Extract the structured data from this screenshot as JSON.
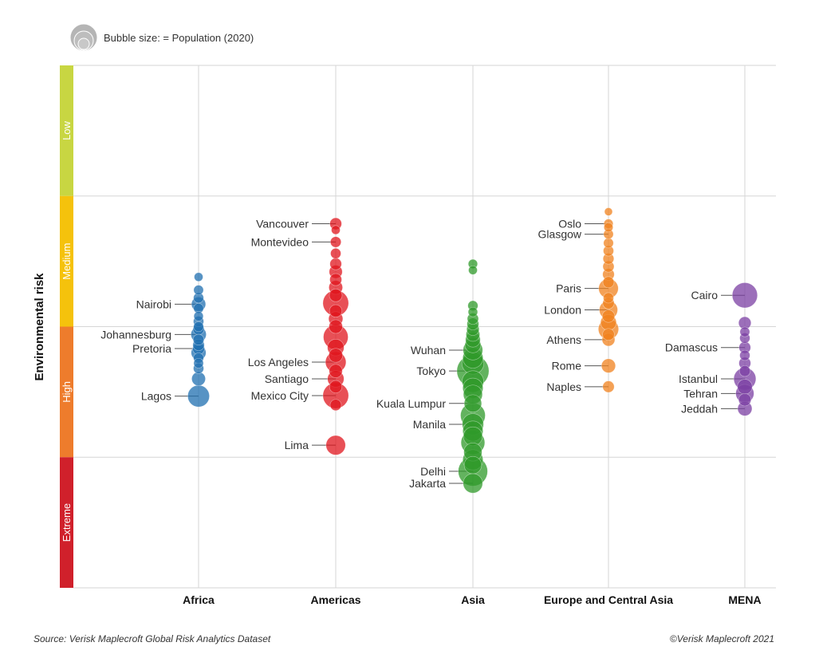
{
  "legend": {
    "text": "Bubble size: = Population (2020)"
  },
  "footer": {
    "source": "Source: Verisk Maplecroft Global Risk Analytics Dataset",
    "copyright": "©Verisk Maplecroft 2021"
  },
  "chart_data": {
    "type": "scatter",
    "title": "",
    "xlabel": "",
    "ylabel": "Environmental risk",
    "grid": true,
    "ylim": [
      0,
      10
    ],
    "y_direction": "higher value = lower risk (Low at top)",
    "risk_bands": [
      {
        "label": "Low",
        "range": [
          7.5,
          10
        ],
        "color": "#c8d642"
      },
      {
        "label": "Medium",
        "range": [
          5,
          7.5
        ],
        "color": "#f5c20c"
      },
      {
        "label": "High",
        "range": [
          2.5,
          5
        ],
        "color": "#ee7c2c"
      },
      {
        "label": "Extreme",
        "range": [
          0,
          2.5
        ],
        "color": "#d0202b"
      }
    ],
    "categories": [
      "Africa",
      "Americas",
      "Asia",
      "Europe and Central Asia",
      "MENA"
    ],
    "series": [
      {
        "name": "Africa",
        "color": "#1f6fb0",
        "labeled": [
          {
            "city": "Nairobi",
            "value": 5.43,
            "size": 4.4
          },
          {
            "city": "Johannesburg",
            "value": 4.85,
            "size": 5.6
          },
          {
            "city": "Pretoria",
            "value": 4.58,
            "size": 2.6
          },
          {
            "city": "Lagos",
            "value": 3.67,
            "size": 14.4
          }
        ],
        "others": [
          {
            "value": 5.95,
            "size": 0.8
          },
          {
            "value": 5.7,
            "size": 1.2
          },
          {
            "value": 5.55,
            "size": 1.5
          },
          {
            "value": 5.35,
            "size": 1.3
          },
          {
            "value": 5.2,
            "size": 1.1
          },
          {
            "value": 5.1,
            "size": 1.6
          },
          {
            "value": 5.0,
            "size": 1.4
          },
          {
            "value": 4.95,
            "size": 2.0
          },
          {
            "value": 4.75,
            "size": 1.8
          },
          {
            "value": 4.65,
            "size": 2.2
          },
          {
            "value": 4.5,
            "size": 5.0
          },
          {
            "value": 4.4,
            "size": 1.5
          },
          {
            "value": 4.3,
            "size": 1.2
          },
          {
            "value": 4.2,
            "size": 1.6
          },
          {
            "value": 4.0,
            "size": 4.0
          }
        ]
      },
      {
        "name": "Americas",
        "color": "#e0161d",
        "labeled": [
          {
            "city": "Vancouver",
            "value": 6.97,
            "size": 2.5
          },
          {
            "city": "Montevideo",
            "value": 6.62,
            "size": 1.7
          },
          {
            "city": "Los Angeles",
            "value": 4.32,
            "size": 12.4
          },
          {
            "city": "Santiago",
            "value": 4.0,
            "size": 6.8
          },
          {
            "city": "Mexico City",
            "value": 3.68,
            "size": 21.8
          },
          {
            "city": "Lima",
            "value": 2.73,
            "size": 10.7
          }
        ],
        "others": [
          {
            "value": 6.85,
            "size": 0.8
          },
          {
            "value": 6.4,
            "size": 1.6
          },
          {
            "value": 6.2,
            "size": 2.4
          },
          {
            "value": 6.05,
            "size": 3.5
          },
          {
            "value": 5.9,
            "size": 2.6
          },
          {
            "value": 5.75,
            "size": 4.0
          },
          {
            "value": 5.6,
            "size": 3.2
          },
          {
            "value": 5.45,
            "size": 22.0
          },
          {
            "value": 5.3,
            "size": 3.0
          },
          {
            "value": 5.15,
            "size": 4.5
          },
          {
            "value": 5.0,
            "size": 3.8
          },
          {
            "value": 4.8,
            "size": 20.0
          },
          {
            "value": 4.6,
            "size": 7.0
          },
          {
            "value": 4.45,
            "size": 4.2
          },
          {
            "value": 4.15,
            "size": 3.6
          },
          {
            "value": 3.85,
            "size": 3.0
          },
          {
            "value": 3.5,
            "size": 2.0
          }
        ]
      },
      {
        "name": "Asia",
        "color": "#2f9a2a",
        "labeled": [
          {
            "city": "Wuhan",
            "value": 4.55,
            "size": 11.1
          },
          {
            "city": "Tokyo",
            "value": 4.15,
            "size": 37.4
          },
          {
            "city": "Kuala Lumpur",
            "value": 3.53,
            "size": 7.9
          },
          {
            "city": "Manila",
            "value": 3.13,
            "size": 13.9
          },
          {
            "city": "Delhi",
            "value": 2.23,
            "size": 30.3
          },
          {
            "city": "Jakarta",
            "value": 2.0,
            "size": 10.8
          }
        ],
        "others": [
          {
            "value": 6.2,
            "size": 1.0
          },
          {
            "value": 6.08,
            "size": 0.8
          },
          {
            "value": 5.4,
            "size": 1.4
          },
          {
            "value": 5.28,
            "size": 1.1
          },
          {
            "value": 5.15,
            "size": 2.0
          },
          {
            "value": 5.05,
            "size": 2.5
          },
          {
            "value": 4.95,
            "size": 3.0
          },
          {
            "value": 4.85,
            "size": 4.0
          },
          {
            "value": 4.75,
            "size": 5.0
          },
          {
            "value": 4.65,
            "size": 6.0
          },
          {
            "value": 4.4,
            "size": 12.0
          },
          {
            "value": 4.3,
            "size": 15.0
          },
          {
            "value": 3.95,
            "size": 14.0
          },
          {
            "value": 3.82,
            "size": 12.0
          },
          {
            "value": 3.7,
            "size": 10.0
          },
          {
            "value": 3.3,
            "size": 20.0
          },
          {
            "value": 3.0,
            "size": 12.0
          },
          {
            "value": 2.9,
            "size": 10.0
          },
          {
            "value": 2.78,
            "size": 18.0
          },
          {
            "value": 2.6,
            "size": 9.0
          },
          {
            "value": 2.45,
            "size": 12.0
          },
          {
            "value": 2.35,
            "size": 8.0
          }
        ]
      },
      {
        "name": "Europe and Central Asia",
        "color": "#f0821e",
        "labeled": [
          {
            "city": "Oslo",
            "value": 6.97,
            "size": 1.0
          },
          {
            "city": "Glasgow",
            "value": 6.77,
            "size": 1.2
          },
          {
            "city": "Paris",
            "value": 5.73,
            "size": 11.0
          },
          {
            "city": "London",
            "value": 5.32,
            "size": 9.3
          },
          {
            "city": "Athens",
            "value": 4.75,
            "size": 3.2
          },
          {
            "city": "Rome",
            "value": 4.25,
            "size": 4.3
          },
          {
            "city": "Naples",
            "value": 3.85,
            "size": 2.2
          }
        ],
        "others": [
          {
            "value": 7.2,
            "size": 0.5
          },
          {
            "value": 6.9,
            "size": 0.9
          },
          {
            "value": 6.6,
            "size": 1.3
          },
          {
            "value": 6.45,
            "size": 1.6
          },
          {
            "value": 6.3,
            "size": 1.8
          },
          {
            "value": 6.15,
            "size": 2.0
          },
          {
            "value": 6.0,
            "size": 2.4
          },
          {
            "value": 5.85,
            "size": 2.0
          },
          {
            "value": 5.55,
            "size": 1.6
          },
          {
            "value": 5.45,
            "size": 2.2
          },
          {
            "value": 5.2,
            "size": 3.0
          },
          {
            "value": 5.08,
            "size": 6.0
          },
          {
            "value": 4.95,
            "size": 12.0
          },
          {
            "value": 4.85,
            "size": 2.5
          }
        ]
      },
      {
        "name": "MENA",
        "color": "#7b3fa3",
        "labeled": [
          {
            "city": "Cairo",
            "value": 5.6,
            "size": 20.9
          },
          {
            "city": "Damascus",
            "value": 4.6,
            "size": 2.4
          },
          {
            "city": "Istanbul",
            "value": 4.0,
            "size": 15.2
          },
          {
            "city": "Tehran",
            "value": 3.72,
            "size": 9.1
          },
          {
            "city": "Jeddah",
            "value": 3.43,
            "size": 4.6
          }
        ],
        "others": [
          {
            "value": 5.07,
            "size": 3.0
          },
          {
            "value": 4.9,
            "size": 1.2
          },
          {
            "value": 4.78,
            "size": 1.5
          },
          {
            "value": 4.45,
            "size": 1.5
          },
          {
            "value": 4.3,
            "size": 2.5
          },
          {
            "value": 4.15,
            "size": 1.8
          },
          {
            "value": 3.85,
            "size": 5.0
          },
          {
            "value": 3.6,
            "size": 3.0
          }
        ]
      }
    ]
  }
}
